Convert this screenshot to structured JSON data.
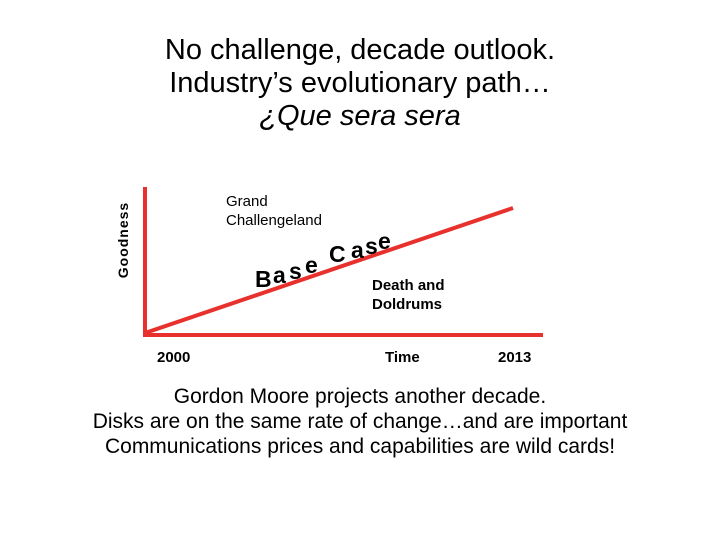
{
  "title": {
    "line1": "No challenge, decade outlook.",
    "line2": "Industry’s evolutionary path…",
    "line3": "¿Que sera sera"
  },
  "diagram": {
    "y_axis_label": "Goodness",
    "grand_challengeland_line1": "Grand",
    "grand_challengeland_line2": "Challengeland",
    "base_case_letters": [
      "B",
      "a",
      "s",
      "e",
      " ",
      "C",
      "a",
      "s",
      "e"
    ],
    "death_doldrums_line1": "Death and",
    "death_doldrums_line2": "Doldrums",
    "x_start_label": "2000",
    "x_axis_label": "Time",
    "x_end_label": "2013",
    "colors": {
      "axis": "#e8302d",
      "trend_line": "#e8302d",
      "text": "#000000"
    }
  },
  "footer": {
    "line1": "Gordon Moore projects another decade.",
    "line2": "Disks are on the same rate of change…and are important",
    "line3": "Communications prices and capabilities are wild cards!"
  }
}
